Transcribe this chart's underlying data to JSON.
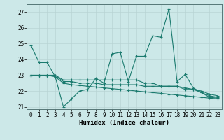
{
  "xlabel": "Humidex (Indice chaleur)",
  "x": [
    0,
    1,
    2,
    3,
    4,
    5,
    6,
    7,
    8,
    9,
    10,
    11,
    12,
    13,
    14,
    15,
    16,
    17,
    18,
    19,
    20,
    21,
    22,
    23
  ],
  "line1": [
    24.9,
    23.8,
    23.8,
    22.9,
    21.0,
    21.5,
    22.0,
    22.1,
    22.8,
    22.5,
    24.35,
    24.45,
    22.6,
    24.2,
    24.2,
    25.5,
    25.4,
    27.2,
    22.6,
    23.05,
    22.2,
    21.9,
    21.6,
    21.55
  ],
  "line2": [
    23.0,
    23.0,
    23.0,
    23.0,
    22.7,
    22.7,
    22.7,
    22.7,
    22.7,
    22.7,
    22.7,
    22.7,
    22.7,
    22.7,
    22.5,
    22.5,
    22.3,
    22.3,
    22.3,
    22.1,
    22.1,
    21.9,
    21.7,
    21.6
  ],
  "line3": [
    23.0,
    23.0,
    23.0,
    23.0,
    22.6,
    22.6,
    22.5,
    22.5,
    22.5,
    22.4,
    22.4,
    22.4,
    22.4,
    22.4,
    22.3,
    22.3,
    22.3,
    22.3,
    22.3,
    22.2,
    22.1,
    22.0,
    21.8,
    21.7
  ],
  "line4": [
    23.0,
    23.0,
    23.0,
    22.9,
    22.5,
    22.4,
    22.35,
    22.3,
    22.25,
    22.2,
    22.15,
    22.1,
    22.05,
    22.0,
    21.95,
    21.9,
    21.85,
    21.8,
    21.75,
    21.7,
    21.65,
    21.6,
    21.55,
    21.5
  ],
  "line_color": "#1a7a6e",
  "bg_color": "#cce8e8",
  "grid_color": "#b8d4d4",
  "ylim": [
    20.85,
    27.5
  ],
  "yticks": [
    21,
    22,
    23,
    24,
    25,
    26,
    27
  ]
}
